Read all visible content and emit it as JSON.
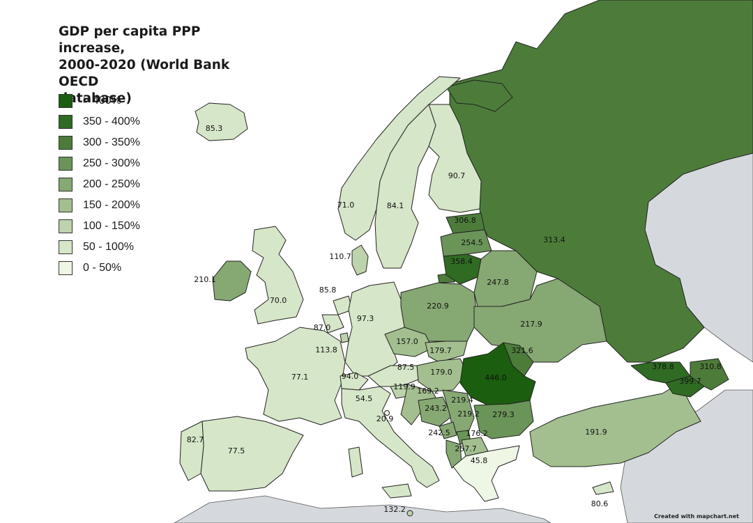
{
  "title_lines": [
    "GDP per capita PPP increase,",
    "2000-2020 (World Bank OECD",
    "database)"
  ],
  "legend": [
    {
      "label": "> 400%",
      "color": "#1b5e0f"
    },
    {
      "label": "350 - 400%",
      "color": "#2f6b22"
    },
    {
      "label": "300 - 350%",
      "color": "#4d7c3a"
    },
    {
      "label": "250 - 300%",
      "color": "#6b9458"
    },
    {
      "label": "200 - 250%",
      "color": "#86a873"
    },
    {
      "label": "150 - 200%",
      "color": "#a3bf8f"
    },
    {
      "label": "100 - 150%",
      "color": "#bdd3ac"
    },
    {
      "label": "50 - 100%",
      "color": "#d6e6c8"
    },
    {
      "label": "0 - 50%",
      "color": "#eef6e6"
    }
  ],
  "credit": "Created with mapchart.net",
  "regions": [
    {
      "name": "Iceland",
      "value": "85.3"
    },
    {
      "name": "Norway",
      "value": "71.0"
    },
    {
      "name": "Sweden",
      "value": "84.1"
    },
    {
      "name": "Finland",
      "value": "90.7"
    },
    {
      "name": "Estonia",
      "value": "306.8"
    },
    {
      "name": "Latvia",
      "value": "254.5"
    },
    {
      "name": "Lithuania",
      "value": "358.4"
    },
    {
      "name": "Russia",
      "value": "313.4"
    },
    {
      "name": "Denmark",
      "value": "110.7"
    },
    {
      "name": "Ireland",
      "value": "210.1"
    },
    {
      "name": "United Kingdom",
      "value": "70.0"
    },
    {
      "name": "Netherlands",
      "value": "85.8"
    },
    {
      "name": "Belgium",
      "value": "87.0"
    },
    {
      "name": "Luxembourg",
      "value": "113.8"
    },
    {
      "name": "Germany",
      "value": "97.3"
    },
    {
      "name": "Poland",
      "value": "220.9"
    },
    {
      "name": "Belarus",
      "value": "247.8"
    },
    {
      "name": "Ukraine",
      "value": "217.9"
    },
    {
      "name": "Czechia",
      "value": "157.0"
    },
    {
      "name": "Slovakia",
      "value": "179.7"
    },
    {
      "name": "Moldova",
      "value": "321.6"
    },
    {
      "name": "France",
      "value": "77.1"
    },
    {
      "name": "Switzerland",
      "value": "94.0"
    },
    {
      "name": "Austria",
      "value": "87.5"
    },
    {
      "name": "Hungary",
      "value": "179.0"
    },
    {
      "name": "Romania",
      "value": "446.0"
    },
    {
      "name": "Slovenia",
      "value": "119.9"
    },
    {
      "name": "Croatia",
      "value": "169.2"
    },
    {
      "name": "Bosnia and Herzegovina",
      "value": "243.2"
    },
    {
      "name": "Serbia",
      "value": "219.4"
    },
    {
      "name": "Montenegro",
      "value": "219.2"
    },
    {
      "name": "Bulgaria",
      "value": "279.3"
    },
    {
      "name": "Albania",
      "value": "242.5"
    },
    {
      "name": "North Macedonia",
      "value": "176.2"
    },
    {
      "name": "Kosovo",
      "value": "257.7"
    },
    {
      "name": "Greece",
      "value": "45.8"
    },
    {
      "name": "Italy",
      "value": "54.5"
    },
    {
      "name": "San Marino",
      "value": "20.9"
    },
    {
      "name": "Portugal",
      "value": "82.7"
    },
    {
      "name": "Spain",
      "value": "77.5"
    },
    {
      "name": "Turkey",
      "value": "191.9"
    },
    {
      "name": "Georgia",
      "value": "378.8"
    },
    {
      "name": "Armenia",
      "value": "399.7"
    },
    {
      "name": "Azerbaijan",
      "value": "310.8"
    },
    {
      "name": "Malta",
      "value": "132.2"
    },
    {
      "name": "Cyprus",
      "value": "80.6"
    }
  ]
}
